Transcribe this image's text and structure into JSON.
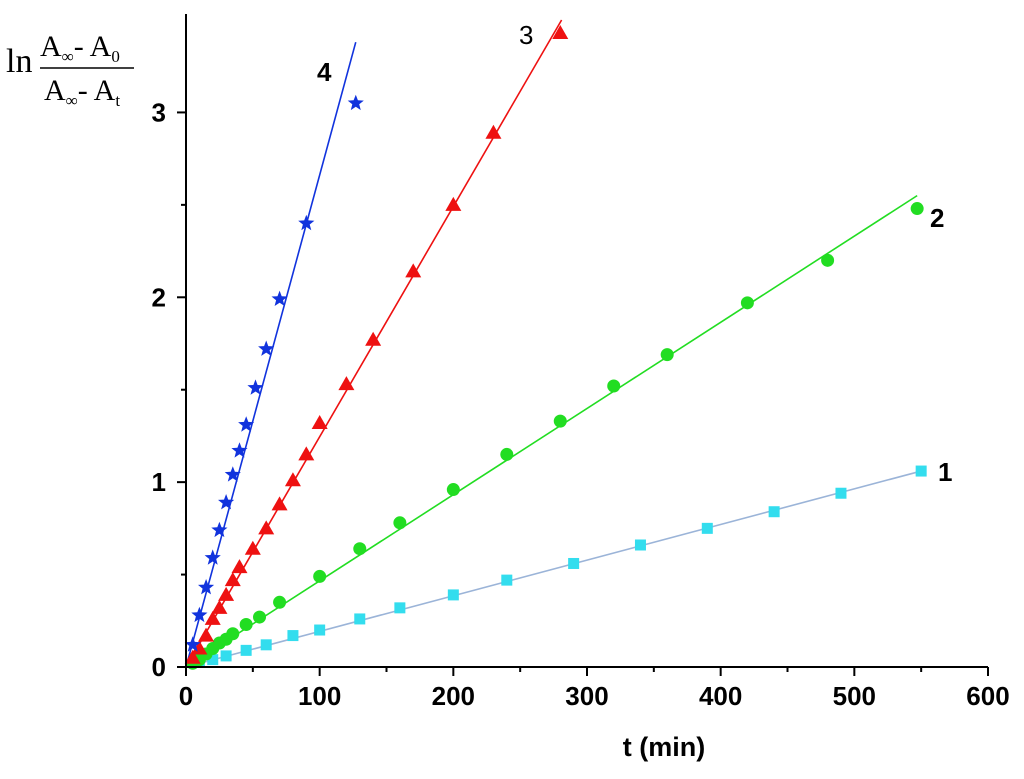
{
  "chart_data": {
    "type": "scatter",
    "title": "",
    "xlabel": "t (min)",
    "ylabel": {
      "prefix": "ln",
      "numerator": {
        "left": "A",
        "left_sub": "∞",
        "op": "- ",
        "right": "A",
        "right_sub": "0"
      },
      "denominator": {
        "left": "A",
        "left_sub": "∞",
        "op": "- ",
        "right": "A",
        "right_sub": "t"
      }
    },
    "xlim": [
      0,
      600
    ],
    "ylim": [
      0,
      3.5
    ],
    "xticks": [
      0,
      100,
      200,
      300,
      400,
      500,
      600
    ],
    "yticks": [
      0,
      1,
      2,
      3
    ],
    "grid": false,
    "series": [
      {
        "name": "1",
        "marker": "square",
        "color": "#33ddee",
        "line_color": "#9bb4d8",
        "fit_line": [
          [
            0,
            0
          ],
          [
            550,
            1.06
          ]
        ],
        "points": [
          [
            10,
            0.03
          ],
          [
            20,
            0.04
          ],
          [
            30,
            0.06
          ],
          [
            45,
            0.09
          ],
          [
            60,
            0.12
          ],
          [
            80,
            0.17
          ],
          [
            100,
            0.2
          ],
          [
            130,
            0.26
          ],
          [
            160,
            0.32
          ],
          [
            200,
            0.39
          ],
          [
            240,
            0.47
          ],
          [
            290,
            0.56
          ],
          [
            340,
            0.66
          ],
          [
            390,
            0.75
          ],
          [
            440,
            0.84
          ],
          [
            490,
            0.94
          ],
          [
            550,
            1.06
          ]
        ]
      },
      {
        "name": "2",
        "marker": "circle",
        "color": "#22dd22",
        "line_color": "#22dd22",
        "fit_line": [
          [
            0,
            0
          ],
          [
            547,
            2.55
          ]
        ],
        "points": [
          [
            5,
            0.02
          ],
          [
            10,
            0.04
          ],
          [
            15,
            0.07
          ],
          [
            20,
            0.1
          ],
          [
            25,
            0.13
          ],
          [
            30,
            0.15
          ],
          [
            35,
            0.18
          ],
          [
            45,
            0.23
          ],
          [
            55,
            0.27
          ],
          [
            70,
            0.35
          ],
          [
            100,
            0.49
          ],
          [
            130,
            0.64
          ],
          [
            160,
            0.78
          ],
          [
            200,
            0.96
          ],
          [
            240,
            1.15
          ],
          [
            280,
            1.33
          ],
          [
            320,
            1.52
          ],
          [
            360,
            1.69
          ],
          [
            420,
            1.97
          ],
          [
            480,
            2.2
          ],
          [
            547,
            2.48
          ]
        ]
      },
      {
        "name": "3",
        "marker": "triangle",
        "color": "#ee1111",
        "line_color": "#ee1111",
        "fit_line": [
          [
            0,
            0
          ],
          [
            281,
            3.5
          ]
        ],
        "points": [
          [
            5,
            0.05
          ],
          [
            10,
            0.1
          ],
          [
            15,
            0.17
          ],
          [
            20,
            0.26
          ],
          [
            25,
            0.32
          ],
          [
            30,
            0.39
          ],
          [
            35,
            0.47
          ],
          [
            40,
            0.54
          ],
          [
            50,
            0.64
          ],
          [
            60,
            0.75
          ],
          [
            70,
            0.88
          ],
          [
            80,
            1.01
          ],
          [
            90,
            1.15
          ],
          [
            100,
            1.32
          ],
          [
            120,
            1.53
          ],
          [
            140,
            1.77
          ],
          [
            170,
            2.14
          ],
          [
            200,
            2.5
          ],
          [
            230,
            2.89
          ],
          [
            280,
            3.43
          ]
        ]
      },
      {
        "name": "4",
        "marker": "star",
        "color": "#1133dd",
        "line_color": "#1133dd",
        "fit_line": [
          [
            0,
            0
          ],
          [
            127,
            3.38
          ]
        ],
        "points": [
          [
            5,
            0.12
          ],
          [
            10,
            0.28
          ],
          [
            15,
            0.43
          ],
          [
            20,
            0.59
          ],
          [
            25,
            0.74
          ],
          [
            30,
            0.89
          ],
          [
            35,
            1.04
          ],
          [
            40,
            1.17
          ],
          [
            45,
            1.31
          ],
          [
            52,
            1.51
          ],
          [
            60,
            1.72
          ],
          [
            70,
            1.99
          ],
          [
            90,
            2.4
          ],
          [
            127,
            3.05
          ]
        ]
      }
    ]
  }
}
